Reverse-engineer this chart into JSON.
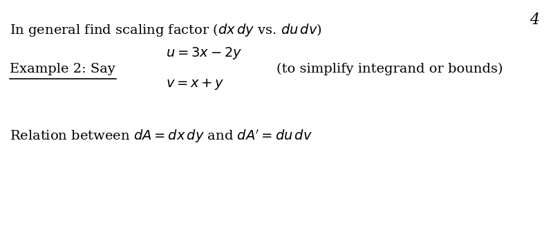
{
  "background_color": "#ffffff",
  "page_number": "4",
  "figsize": [
    8.0,
    3.56
  ],
  "dpi": 100,
  "font_size": 14,
  "page_num_fontsize": 16
}
